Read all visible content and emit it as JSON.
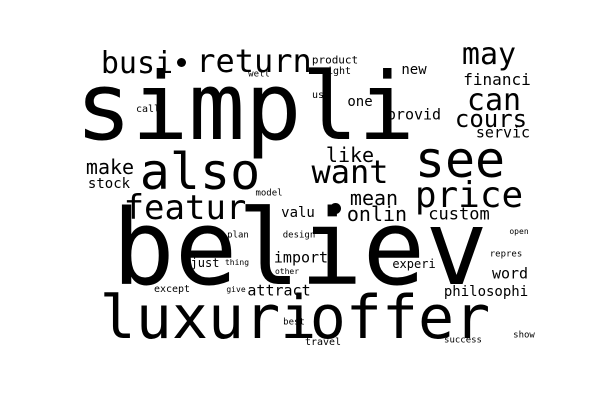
{
  "cloud": {
    "background": "#ffffff",
    "text_color": "#000000",
    "words": [
      {
        "text": "simpli",
        "weight": 100
      },
      {
        "text": "believ",
        "weight": 98
      },
      {
        "text": "luxuri",
        "weight": 58
      },
      {
        "text": "offer",
        "weight": 58
      },
      {
        "text": "also",
        "weight": 48
      },
      {
        "text": "see",
        "weight": 48
      },
      {
        "text": "price",
        "weight": 34
      },
      {
        "text": "featur",
        "weight": 30
      },
      {
        "text": "want",
        "weight": 30
      },
      {
        "text": "may",
        "weight": 28
      },
      {
        "text": "can",
        "weight": 28
      },
      {
        "text": "busi",
        "weight": 28
      },
      {
        "text": "return",
        "weight": 28
      },
      {
        "text": "cours",
        "weight": 22
      },
      {
        "text": "like",
        "weight": 18
      },
      {
        "text": "mean",
        "weight": 18
      },
      {
        "text": "onlin",
        "weight": 18
      },
      {
        "text": "make",
        "weight": 18
      },
      {
        "text": "custom",
        "weight": 14
      },
      {
        "text": "financi",
        "weight": 14
      },
      {
        "text": "provid",
        "weight": 13
      },
      {
        "text": "servic",
        "weight": 13
      },
      {
        "text": "import",
        "weight": 13
      },
      {
        "text": "attract",
        "weight": 13
      },
      {
        "text": "word",
        "weight": 13
      },
      {
        "text": "philosophi",
        "weight": 12
      },
      {
        "text": "stock",
        "weight": 12
      },
      {
        "text": "valu",
        "weight": 12
      },
      {
        "text": "one",
        "weight": 12
      },
      {
        "text": "new",
        "weight": 12
      },
      {
        "text": "just",
        "weight": 10
      },
      {
        "text": "experi",
        "weight": 10
      },
      {
        "text": "product",
        "weight": 10
      },
      {
        "text": "right",
        "weight": 9
      },
      {
        "text": "us",
        "weight": 9
      },
      {
        "text": "call",
        "weight": 9
      },
      {
        "text": "well",
        "weight": 9
      },
      {
        "text": "model",
        "weight": 9
      },
      {
        "text": "except",
        "weight": 9
      },
      {
        "text": "travel",
        "weight": 9
      },
      {
        "text": "plan",
        "weight": 8
      },
      {
        "text": "design",
        "weight": 8
      },
      {
        "text": "thing",
        "weight": 8
      },
      {
        "text": "other",
        "weight": 7
      },
      {
        "text": "give",
        "weight": 7
      },
      {
        "text": "best",
        "weight": 8
      },
      {
        "text": "success",
        "weight": 8
      },
      {
        "text": "show",
        "weight": 8
      },
      {
        "text": "open",
        "weight": 8
      },
      {
        "text": "repres",
        "weight": 8
      }
    ],
    "dots": 2
  }
}
